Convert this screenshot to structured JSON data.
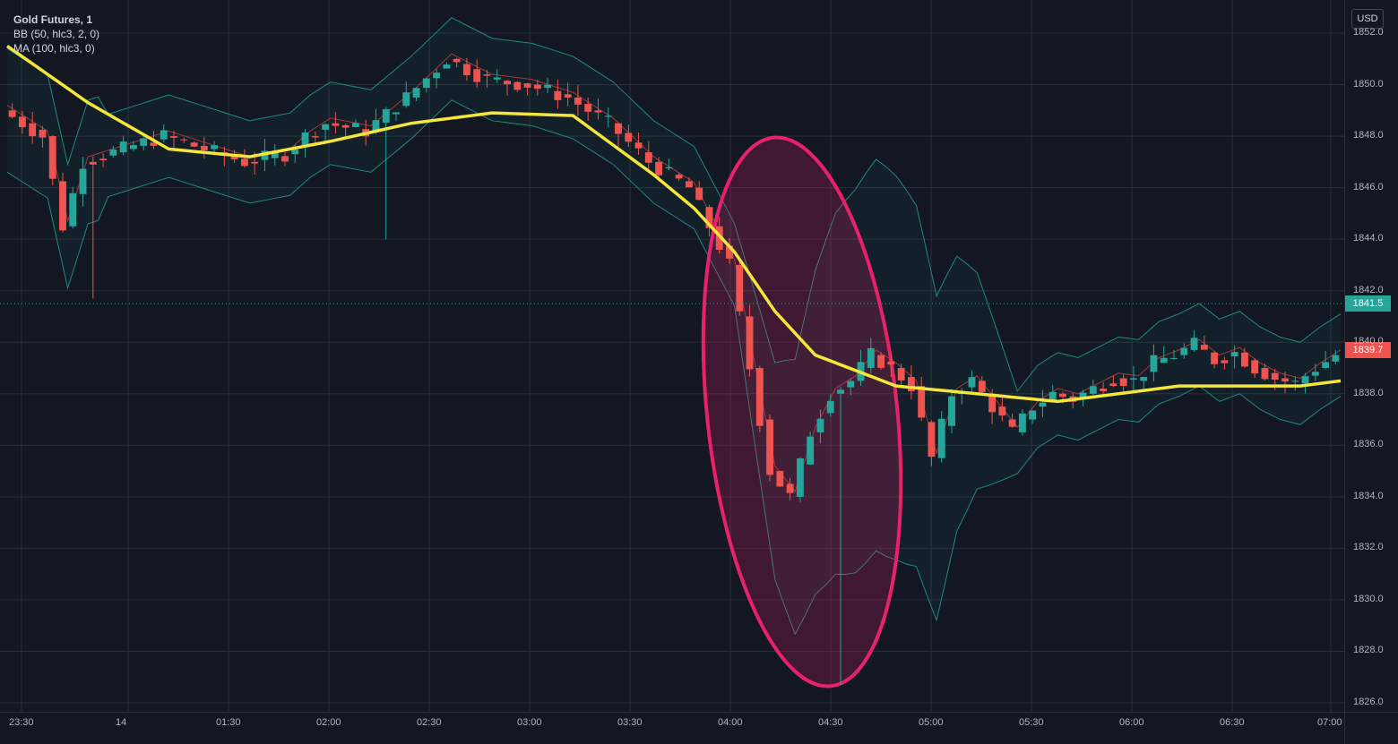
{
  "legend": {
    "title": "Gold Futures, 1",
    "indicators": [
      "BB (50, hlc3, 2, 0)",
      "MA (100, hlc3, 0)"
    ]
  },
  "currency_label": "USD",
  "price_axis": {
    "ticks": [
      "1852.0",
      "1850.0",
      "1848.0",
      "1846.0",
      "1844.0",
      "1842.0",
      "1840.0",
      "1838.0",
      "1836.0",
      "1834.0",
      "1832.0",
      "1830.0",
      "1828.0",
      "1826.0"
    ]
  },
  "time_axis": {
    "ticks": [
      "23:30",
      "14",
      "01:30",
      "02:00",
      "02:30",
      "03:00",
      "03:30",
      "04:00",
      "04:30",
      "05:00",
      "05:30",
      "06:00",
      "06:30",
      "07:00"
    ]
  },
  "last_price": {
    "value": "1841.5",
    "color": "#26a69a"
  },
  "current_price": {
    "value": "1839.7",
    "color": "#ef5350"
  },
  "colors": {
    "background": "#131722",
    "up": "#26a69a",
    "down": "#ef5350",
    "ma": "#f5e63b",
    "bb_band": "#1e8a7e",
    "bb_basis": "#a33a3a",
    "highlight": "#e8226a"
  },
  "chart_data": {
    "type": "candlestick",
    "title": "Gold Futures, 1",
    "ylim": [
      1826,
      1852
    ],
    "x_ticks": [
      "23:30",
      "14",
      "01:30",
      "02:00",
      "02:30",
      "03:00",
      "03:30",
      "04:00",
      "04:30",
      "05:00",
      "05:30",
      "06:00",
      "06:30",
      "07:00"
    ],
    "price_path": {
      "time_index": [
        0,
        4,
        6,
        8,
        12,
        16,
        20,
        24,
        28,
        30,
        32,
        36,
        40,
        44,
        48,
        52,
        56,
        60,
        64,
        68,
        72,
        74,
        76,
        78,
        80,
        82,
        84,
        86,
        88,
        90,
        92,
        94,
        96,
        98,
        100,
        102,
        104,
        106,
        108,
        110,
        112,
        114,
        116,
        118,
        120,
        122,
        124,
        126,
        128,
        130,
        132
      ],
      "close": [
        1849,
        1848,
        1844.5,
        1847,
        1847.5,
        1848,
        1847.5,
        1847,
        1847.3,
        1848,
        1848.5,
        1848.2,
        1849.5,
        1851,
        1850.2,
        1850,
        1849.5,
        1848.5,
        1847,
        1846,
        1843,
        1839,
        1835,
        1834,
        1836.5,
        1838,
        1838.5,
        1839.5,
        1839,
        1838.3,
        1835.5,
        1838,
        1838.5,
        1837.5,
        1836.5,
        1837.5,
        1838,
        1837.8,
        1838.2,
        1838.6,
        1838.5,
        1839.2,
        1839.5,
        1839.9,
        1839.3,
        1839.6,
        1839,
        1838.6,
        1838.4,
        1839,
        1839.5
      ],
      "extreme_low": 1826.7,
      "extreme_low_index": 82
    },
    "ma100": {
      "time_index": [
        0,
        8,
        16,
        24,
        32,
        40,
        48,
        56,
        64,
        68,
        72,
        76,
        80,
        88,
        96,
        104,
        112,
        116,
        120,
        124,
        128,
        132
      ],
      "values": [
        1851.5,
        1849.3,
        1847.5,
        1847.2,
        1847.8,
        1848.5,
        1848.9,
        1848.8,
        1846.5,
        1845.2,
        1843.5,
        1841.2,
        1839.5,
        1838.3,
        1838.0,
        1837.7,
        1838.1,
        1838.3,
        1838.3,
        1838.3,
        1838.3,
        1838.5
      ]
    },
    "annotations": [
      {
        "type": "ellipse",
        "description": "highlight of sharp drop"
      }
    ]
  }
}
